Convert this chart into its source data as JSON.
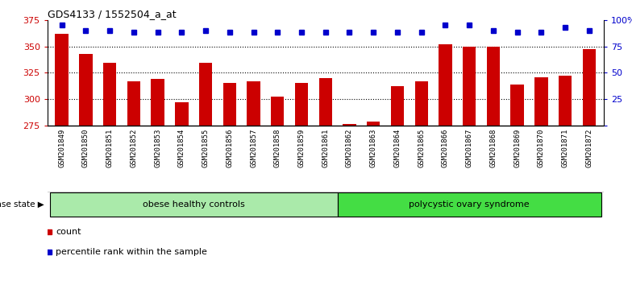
{
  "title": "GDS4133 / 1552504_a_at",
  "samples": [
    "GSM201849",
    "GSM201850",
    "GSM201851",
    "GSM201852",
    "GSM201853",
    "GSM201854",
    "GSM201855",
    "GSM201856",
    "GSM201857",
    "GSM201858",
    "GSM201859",
    "GSM201861",
    "GSM201862",
    "GSM201863",
    "GSM201864",
    "GSM201865",
    "GSM201866",
    "GSM201867",
    "GSM201868",
    "GSM201869",
    "GSM201870",
    "GSM201871",
    "GSM201872"
  ],
  "counts": [
    362,
    343,
    334,
    317,
    319,
    297,
    334,
    315,
    317,
    302,
    315,
    320,
    276,
    279,
    312,
    317,
    352,
    350,
    350,
    314,
    321,
    322,
    347
  ],
  "percentiles": [
    95,
    90,
    90,
    88,
    88,
    88,
    90,
    88,
    88,
    88,
    88,
    88,
    88,
    88,
    88,
    88,
    95,
    95,
    90,
    88,
    88,
    93,
    90
  ],
  "groups": [
    {
      "label": "obese healthy controls",
      "start": 0,
      "end": 12,
      "color": "#AAEAAA"
    },
    {
      "label": "polycystic ovary syndrome",
      "start": 12,
      "end": 23,
      "color": "#44DD44"
    }
  ],
  "ylim_left": [
    275,
    375
  ],
  "ylim_right": [
    0,
    100
  ],
  "yticks_left": [
    275,
    300,
    325,
    350,
    375
  ],
  "yticks_right": [
    0,
    25,
    50,
    75,
    100
  ],
  "bar_color": "#CC0000",
  "dot_color": "#0000CC",
  "bg_color": "#FFFFFF",
  "tick_bg_color": "#CCCCCC",
  "label_count": "count",
  "label_percentile": "percentile rank within the sample",
  "disease_state_label": "disease state"
}
